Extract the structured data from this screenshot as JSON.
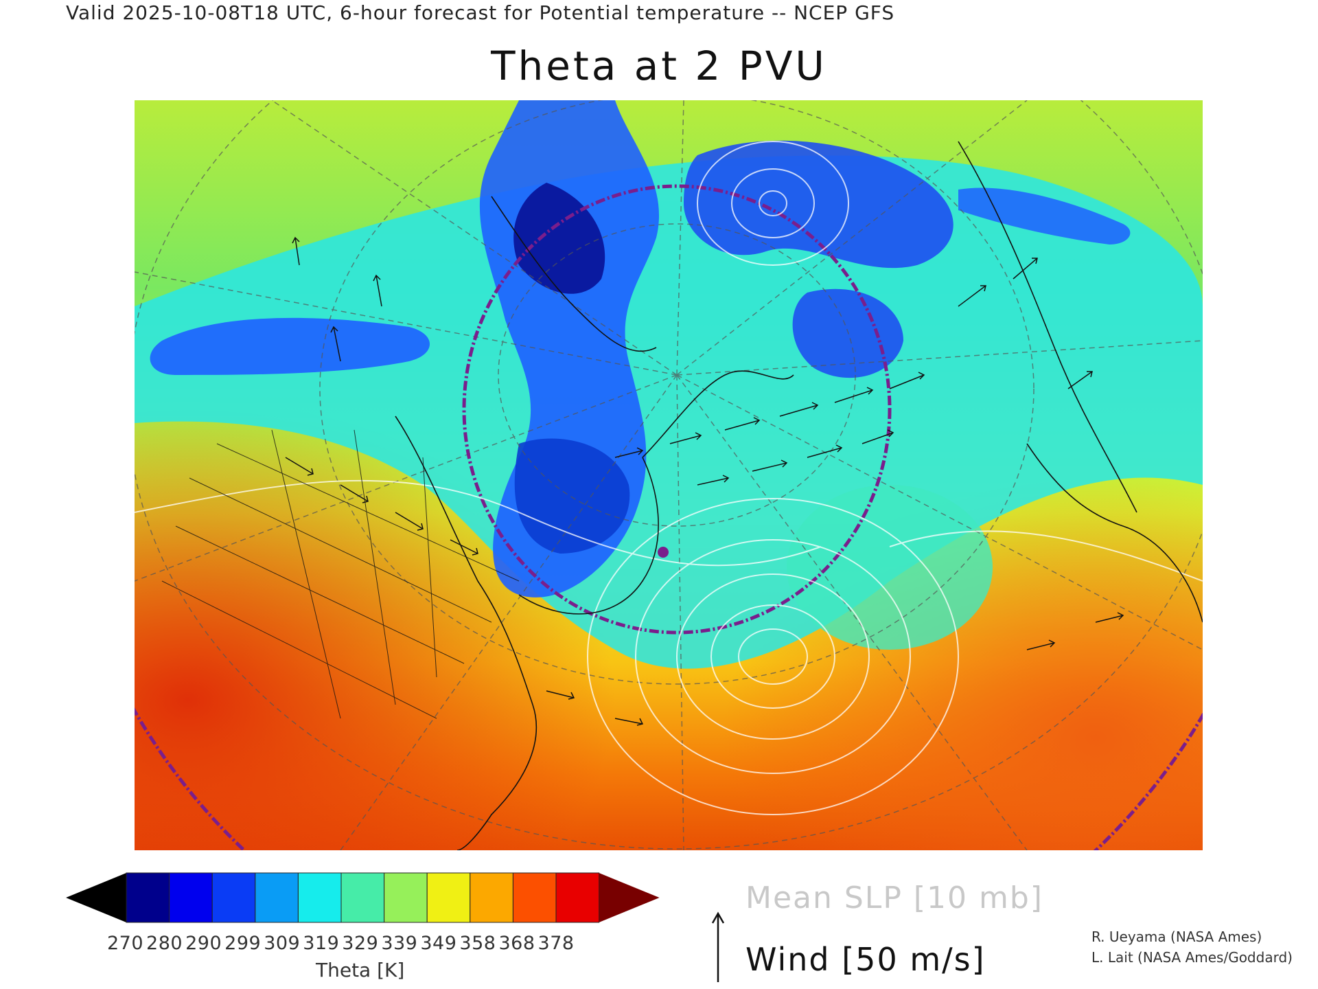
{
  "header": {
    "valid_line": "Valid 2025-10-08T18 UTC, 6-hour forecast for Potential temperature -- NCEP GFS"
  },
  "title": "Theta at 2 PVU",
  "colorbar": {
    "label": "Theta [K]",
    "ticks": [
      "270",
      "280",
      "290",
      "299",
      "309",
      "319",
      "329",
      "339",
      "349",
      "358",
      "368",
      "378"
    ],
    "colors": [
      "#000000",
      "#00008c",
      "#0000ee",
      "#0a3cf5",
      "#0a9cf5",
      "#16ecec",
      "#46eca8",
      "#96f05a",
      "#f0f014",
      "#fca800",
      "#fc5000",
      "#e80000",
      "#780000"
    ]
  },
  "legend": {
    "slp_label": "Mean SLP [10 mb]",
    "wind_label": "Wind [50 m/s]"
  },
  "credits": [
    "R. Ueyama (NASA Ames)",
    "L. Lait (NASA Ames/Goddard)"
  ],
  "map": {
    "projection": "north-polar-stereographic",
    "field": "Potential temperature at 2 PVU",
    "highlighted_point_color": "#7a1e8c",
    "circle_color": "#7a1e8c",
    "colors": {
      "cold_core": "#1e3cff",
      "deep_cold": "#0a1aa0",
      "mid": "#28e6e6",
      "warm_south": "#f07000"
    }
  }
}
